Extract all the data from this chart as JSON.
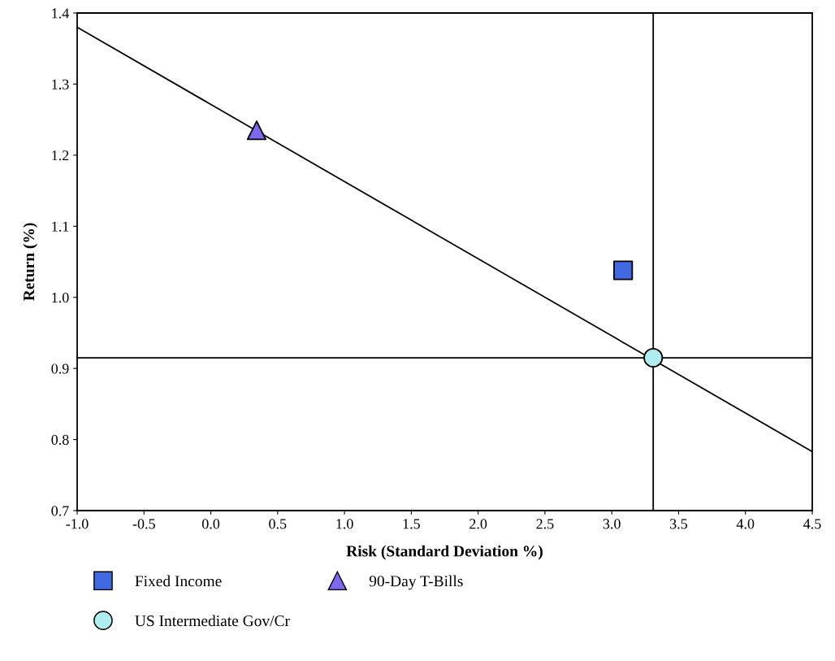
{
  "chart_data": {
    "type": "scatter",
    "xlabel": "Risk (Standard Deviation %)",
    "ylabel": "Return (%)",
    "series": [
      {
        "type": "line",
        "color": "#000000",
        "marker": "none",
        "x": [
          -1.0,
          4.5
        ],
        "values": [
          1.38,
          0.783
        ]
      },
      {
        "name": "Fixed Income",
        "color": "#4169e1",
        "marker": "square",
        "x": [
          3.085
        ],
        "values": [
          1.038
        ]
      },
      {
        "name": "US Intermediate Gov/Cr",
        "color": "#afeeee",
        "marker": "circle",
        "x": [
          3.31
        ],
        "values": [
          0.915
        ]
      },
      {
        "name": "90-Day T-Bills",
        "color": "#7b68ee",
        "marker": "triangle",
        "x": [
          0.343
        ],
        "values": [
          1.235
        ]
      }
    ],
    "ref_lines": [
      {
        "axis": "x",
        "value": 3.31,
        "color": "#000000"
      },
      {
        "axis": "y",
        "value": 0.915,
        "color": "#000000"
      }
    ],
    "xlim": [
      -1.0,
      4.5
    ],
    "xticks": [
      {
        "value": -1.0,
        "label": "-1.0"
      },
      {
        "value": -0.5,
        "label": "-0.5"
      },
      {
        "value": 0.0,
        "label": "0.0"
      },
      {
        "value": 0.5,
        "label": "0.5"
      },
      {
        "value": 1.0,
        "label": "1.0"
      },
      {
        "value": 1.5,
        "label": "1.5"
      },
      {
        "value": 2.0,
        "label": "2.0"
      },
      {
        "value": 2.5,
        "label": "2.5"
      },
      {
        "value": 3.0,
        "label": "3.0"
      },
      {
        "value": 3.5,
        "label": "3.5"
      },
      {
        "value": 4.0,
        "label": "4.0"
      },
      {
        "value": 4.5,
        "label": "4.5"
      }
    ],
    "ylim": [
      0.7,
      1.4
    ],
    "yticks": [
      {
        "value": 0.7,
        "label": "0.7"
      },
      {
        "value": 0.8,
        "label": "0.8"
      },
      {
        "value": 0.9,
        "label": "0.9"
      },
      {
        "value": 1.0,
        "label": "1.0"
      },
      {
        "value": 1.1,
        "label": "1.1"
      },
      {
        "value": 1.2,
        "label": "1.2"
      },
      {
        "value": 1.3,
        "label": "1.3"
      },
      {
        "value": 1.4,
        "label": "1.4"
      }
    ],
    "grid": false,
    "legend": "bottom"
  }
}
